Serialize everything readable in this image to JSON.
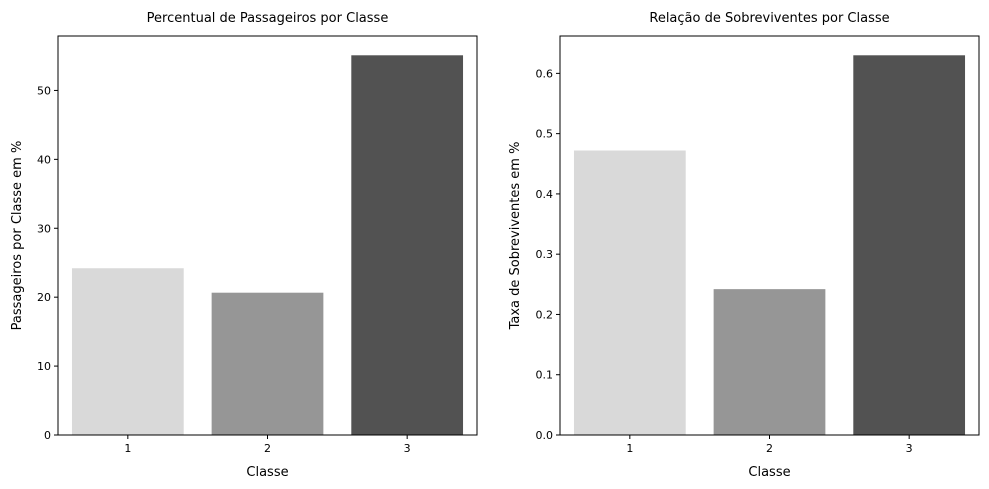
{
  "chart_data": [
    {
      "type": "bar",
      "title": "Percentual de Passageiros por Classe",
      "xlabel": "Classe",
      "ylabel": "Passageiros por Classe em %",
      "categories": [
        "1",
        "2",
        "3"
      ],
      "values": [
        24.2,
        20.65,
        55.1
      ],
      "colors": [
        "#d9d9d9",
        "#969696",
        "#525252"
      ],
      "ylim": [
        0,
        57.9
      ],
      "yticks": [
        0,
        10,
        20,
        30,
        40,
        50
      ],
      "ytick_labels": [
        "0",
        "10",
        "20",
        "30",
        "40",
        "50"
      ],
      "grid": false,
      "legend": "none"
    },
    {
      "type": "bar",
      "title": "Relação de Sobreviventes por Classe",
      "xlabel": "Classe",
      "ylabel": "Taxa de Sobreviventes em %",
      "categories": [
        "1",
        "2",
        "3"
      ],
      "values": [
        0.472,
        0.242,
        0.63
      ],
      "colors": [
        "#d9d9d9",
        "#969696",
        "#525252"
      ],
      "ylim": [
        0,
        0.662
      ],
      "yticks": [
        0,
        0.1,
        0.2,
        0.3,
        0.4,
        0.5,
        0.6
      ],
      "ytick_labels": [
        "0.0",
        "0.1",
        "0.2",
        "0.3",
        "0.4",
        "0.5",
        "0.6"
      ],
      "grid": false,
      "legend": "none"
    }
  ]
}
